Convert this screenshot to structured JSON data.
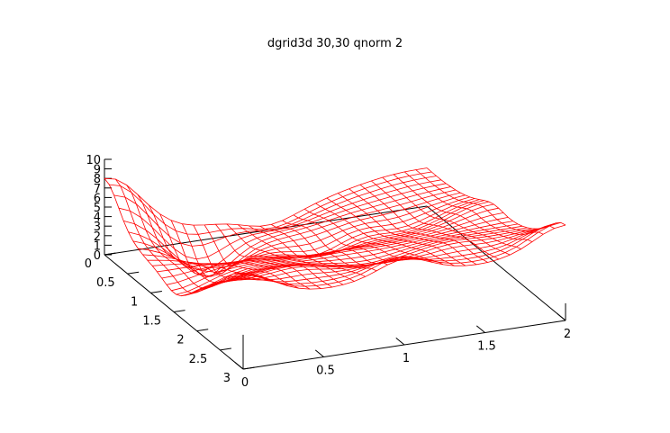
{
  "chart_data": {
    "type": "surface",
    "title": "dgrid3d 30,30 qnorm 2",
    "x_ticks": [
      "0",
      "0.5",
      "1",
      "1.5",
      "2"
    ],
    "y_ticks": [
      "0",
      "0.5",
      "1",
      "1.5",
      "2",
      "2.5",
      "3"
    ],
    "z_ticks": [
      "0",
      "1",
      "2",
      "3",
      "4",
      "5",
      "6",
      "7",
      "8",
      "9",
      "10"
    ],
    "xlim": [
      0,
      2
    ],
    "ylim": [
      0,
      3
    ],
    "zlim": [
      0,
      10
    ],
    "grid": "30x30",
    "mesh_color": "#ff0000",
    "control_points": [
      {
        "x": 0.0,
        "y": 0.0,
        "z": 8.0
      },
      {
        "x": 0.0,
        "y": 1.5,
        "z": 2.0
      },
      {
        "x": 0.0,
        "y": 3.0,
        "z": 9.8
      },
      {
        "x": 0.5,
        "y": 0.5,
        "z": -1.5
      },
      {
        "x": 0.5,
        "y": 2.5,
        "z": 7.0
      },
      {
        "x": 1.0,
        "y": 0.0,
        "z": 0.5
      },
      {
        "x": 1.0,
        "y": 1.0,
        "z": 1.5
      },
      {
        "x": 1.0,
        "y": 2.0,
        "z": 5.0
      },
      {
        "x": 1.0,
        "y": 3.0,
        "z": 9.0
      },
      {
        "x": 1.5,
        "y": 1.0,
        "z": 3.0
      },
      {
        "x": 1.5,
        "y": 2.5,
        "z": 7.0
      },
      {
        "x": 2.0,
        "y": 0.0,
        "z": 4.0
      },
      {
        "x": 2.0,
        "y": 1.5,
        "z": 6.0
      },
      {
        "x": 2.0,
        "y": 3.0,
        "z": 10.0
      }
    ]
  }
}
